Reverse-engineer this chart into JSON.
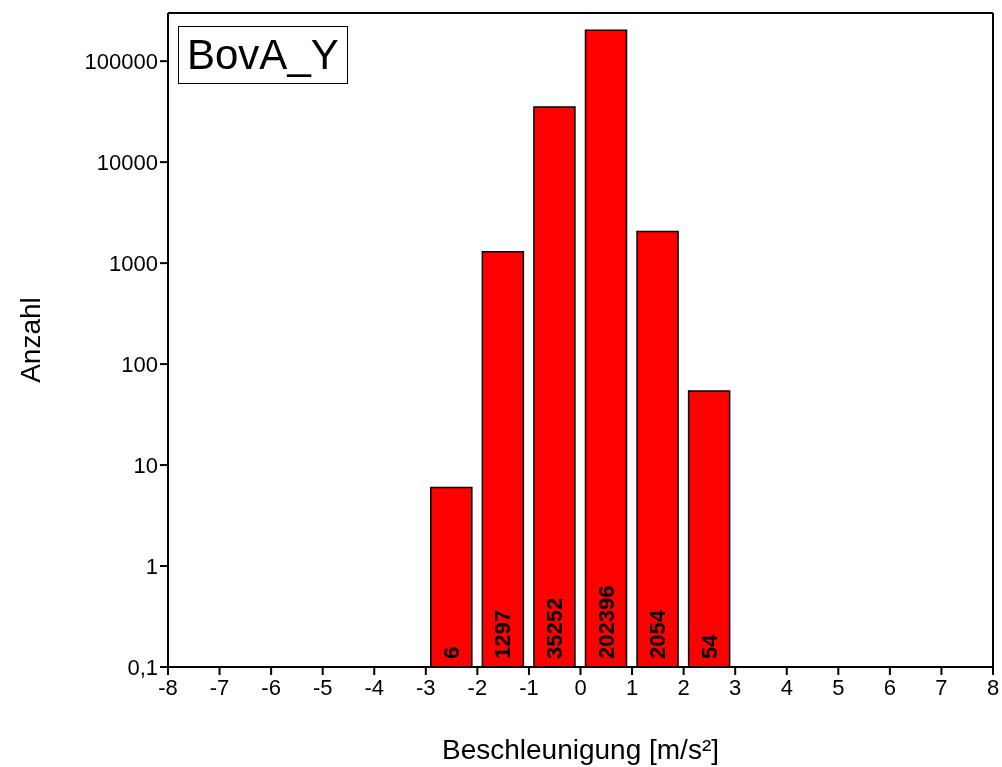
{
  "chart_data": {
    "type": "histogram",
    "title": "BovA_Y",
    "xlabel": "Beschleunigung [m/s²]",
    "ylabel": "Anzahl",
    "bins": [
      -3,
      -2,
      -1,
      0,
      1,
      2,
      3
    ],
    "values": [
      6,
      1297,
      35252,
      202396,
      2054,
      54
    ],
    "color": "#ff0000",
    "data_labels": true,
    "log": "y",
    "xlim": [
      -8,
      8
    ],
    "xticks": [
      -8,
      -7,
      -6,
      -5,
      -4,
      -3,
      -2,
      -1,
      0,
      1,
      2,
      3,
      4,
      5,
      6,
      7,
      8
    ],
    "ylim": [
      0.1,
      300000
    ],
    "yticks": [
      {
        "value": 0.1,
        "label": "0,1"
      },
      1,
      10,
      100,
      1000,
      10000,
      100000
    ]
  }
}
